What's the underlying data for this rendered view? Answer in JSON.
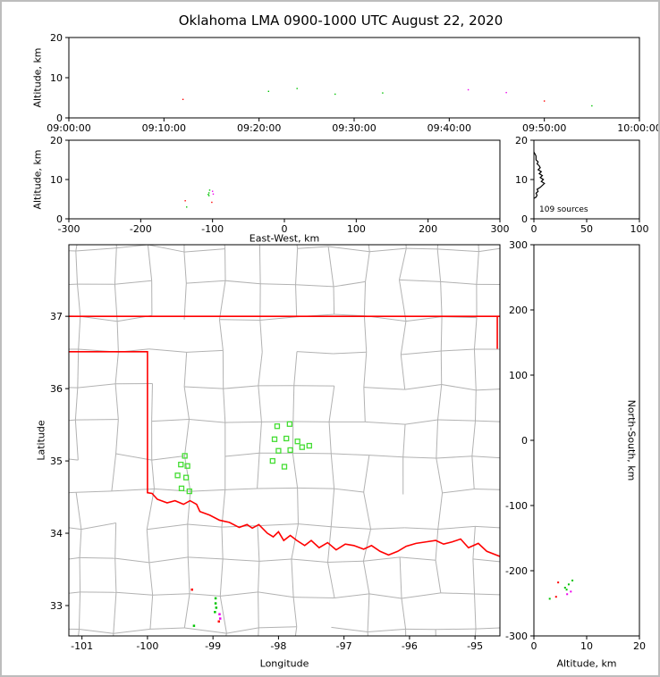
{
  "title": "Oklahoma LMA 0900-1000 UTC August 22, 2020",
  "colors": {
    "county": "#b2b2b2",
    "state_border": "#ff0000",
    "station": "#44dd33",
    "axis": "#000000",
    "green_source": "#00c400",
    "red_source": "#ff0000",
    "magenta_source": "#ee00ee"
  },
  "chart_data": [
    {
      "id": "time_height",
      "type": "scatter",
      "ylabel": "Altitude, km",
      "ylim": [
        0,
        20
      ],
      "yticks": [
        0,
        10,
        20
      ],
      "xlim": [
        0,
        60
      ],
      "xticks": [
        {
          "pos": 0,
          "label": "09:00:00"
        },
        {
          "pos": 10,
          "label": "09:10:00"
        },
        {
          "pos": 20,
          "label": "09:20:00"
        },
        {
          "pos": 30,
          "label": "09:30:00"
        },
        {
          "pos": 40,
          "label": "09:40:00"
        },
        {
          "pos": 50,
          "label": "09:50:00"
        },
        {
          "pos": 60,
          "label": "10:00:00"
        }
      ],
      "points": [
        {
          "x": 12,
          "y": 4.6,
          "c": "#ff0000"
        },
        {
          "x": 21,
          "y": 6.6,
          "c": "#00c400"
        },
        {
          "x": 24,
          "y": 7.3,
          "c": "#00c400"
        },
        {
          "x": 28,
          "y": 5.9,
          "c": "#00c400"
        },
        {
          "x": 33,
          "y": 6.2,
          "c": "#00c400"
        },
        {
          "x": 42,
          "y": 7.0,
          "c": "#ee00ee"
        },
        {
          "x": 46,
          "y": 6.3,
          "c": "#ee00ee"
        },
        {
          "x": 50,
          "y": 4.2,
          "c": "#ff0000"
        },
        {
          "x": 55,
          "y": 3.0,
          "c": "#00c400"
        }
      ]
    },
    {
      "id": "ew_height",
      "type": "scatter",
      "xlabel": "East-West, km",
      "ylabel": "Altitude, km",
      "xlim": [
        -300,
        300
      ],
      "xticks": [
        -300,
        -200,
        -100,
        0,
        100,
        200,
        300
      ],
      "ylim": [
        0,
        20
      ],
      "yticks": [
        0,
        10,
        20
      ],
      "points": [
        {
          "x": -138,
          "y": 4.6,
          "c": "#ff0000"
        },
        {
          "x": -105,
          "y": 6.6,
          "c": "#00c400"
        },
        {
          "x": -104,
          "y": 7.3,
          "c": "#00c400"
        },
        {
          "x": -105,
          "y": 5.9,
          "c": "#00c400"
        },
        {
          "x": -106,
          "y": 6.2,
          "c": "#00c400"
        },
        {
          "x": -100,
          "y": 7.0,
          "c": "#ee00ee"
        },
        {
          "x": -99,
          "y": 6.3,
          "c": "#ee00ee"
        },
        {
          "x": -101,
          "y": 4.2,
          "c": "#ff0000"
        },
        {
          "x": -136,
          "y": 3.0,
          "c": "#00c400"
        }
      ]
    },
    {
      "id": "source_histogram",
      "type": "line",
      "annotation": "109 sources",
      "xlim": [
        0,
        100
      ],
      "xticks": [
        0,
        50,
        100
      ],
      "ylim": [
        0,
        20
      ],
      "yticks": [
        0,
        10,
        20
      ],
      "profile": [
        [
          0,
          5.2
        ],
        [
          2,
          5.5
        ],
        [
          3,
          6.0
        ],
        [
          2,
          6.5
        ],
        [
          4,
          7.0
        ],
        [
          3,
          7.5
        ],
        [
          6,
          8.0
        ],
        [
          8,
          8.5
        ],
        [
          10,
          9.0
        ],
        [
          7,
          9.5
        ],
        [
          9,
          10.0
        ],
        [
          6,
          10.5
        ],
        [
          8,
          11.0
        ],
        [
          5,
          11.5
        ],
        [
          7,
          12.0
        ],
        [
          4,
          12.5
        ],
        [
          6,
          13.0
        ],
        [
          5,
          13.5
        ],
        [
          3,
          14.0
        ],
        [
          4,
          14.5
        ],
        [
          2,
          15.0
        ],
        [
          2,
          15.5
        ],
        [
          2,
          16.0
        ],
        [
          1,
          16.5
        ],
        [
          0,
          17.0
        ]
      ]
    },
    {
      "id": "map",
      "type": "scatter",
      "xlabel": "Longitude",
      "ylabel": "Latitude",
      "xlim": [
        -101.2,
        -94.62
      ],
      "xticks": [
        -101,
        -100,
        -99,
        -98,
        -97,
        -96,
        -95
      ],
      "ylim": [
        32.58,
        37.99
      ],
      "yticks": [
        33,
        34,
        35,
        36,
        37
      ],
      "stations": [
        [
          -98.02,
          35.48
        ],
        [
          -97.83,
          35.51
        ],
        [
          -98.06,
          35.3
        ],
        [
          -97.88,
          35.31
        ],
        [
          -97.71,
          35.27
        ],
        [
          -98.0,
          35.14
        ],
        [
          -97.82,
          35.15
        ],
        [
          -97.64,
          35.19
        ],
        [
          -98.09,
          35.0
        ],
        [
          -97.53,
          35.21
        ],
        [
          -97.91,
          34.92
        ],
        [
          -99.43,
          35.07
        ],
        [
          -99.49,
          34.95
        ],
        [
          -99.39,
          34.93
        ],
        [
          -99.54,
          34.8
        ],
        [
          -99.41,
          34.77
        ],
        [
          -99.48,
          34.62
        ],
        [
          -99.36,
          34.58
        ]
      ],
      "points": [
        {
          "x": -99.32,
          "y": 33.22,
          "c": "#ff0000"
        },
        {
          "x": -98.96,
          "y": 33.1,
          "c": "#00c400"
        },
        {
          "x": -98.96,
          "y": 33.03,
          "c": "#00c400"
        },
        {
          "x": -98.95,
          "y": 32.97,
          "c": "#00c400"
        },
        {
          "x": -98.97,
          "y": 32.91,
          "c": "#00c400"
        },
        {
          "x": -98.9,
          "y": 32.88,
          "c": "#ee00ee"
        },
        {
          "x": -98.89,
          "y": 32.82,
          "c": "#ee00ee"
        },
        {
          "x": -98.91,
          "y": 32.78,
          "c": "#ff0000"
        },
        {
          "x": -99.29,
          "y": 32.72,
          "c": "#00c400"
        }
      ],
      "borders": [
        [
          [
            -101.2,
            37.0
          ],
          [
            -94.62,
            37.0
          ]
        ],
        [
          [
            -94.66,
            37.0
          ],
          [
            -94.66,
            36.55
          ]
        ],
        [
          [
            -101.2,
            36.51
          ],
          [
            -100.0,
            36.51
          ],
          [
            -100.0,
            34.56
          ],
          [
            -99.93,
            34.55
          ],
          [
            -99.85,
            34.47
          ],
          [
            -99.7,
            34.42
          ],
          [
            -99.58,
            34.45
          ],
          [
            -99.45,
            34.4
          ],
          [
            -99.35,
            34.45
          ],
          [
            -99.25,
            34.4
          ],
          [
            -99.2,
            34.3
          ],
          [
            -99.05,
            34.25
          ],
          [
            -98.9,
            34.18
          ],
          [
            -98.75,
            34.15
          ],
          [
            -98.6,
            34.08
          ],
          [
            -98.48,
            34.12
          ],
          [
            -98.4,
            34.07
          ],
          [
            -98.3,
            34.12
          ],
          [
            -98.17,
            34.0
          ],
          [
            -98.08,
            33.95
          ],
          [
            -98.0,
            34.02
          ],
          [
            -97.92,
            33.9
          ],
          [
            -97.82,
            33.97
          ],
          [
            -97.72,
            33.9
          ],
          [
            -97.6,
            33.83
          ],
          [
            -97.5,
            33.9
          ],
          [
            -97.38,
            33.8
          ],
          [
            -97.25,
            33.87
          ],
          [
            -97.12,
            33.77
          ],
          [
            -96.98,
            33.85
          ],
          [
            -96.85,
            33.83
          ],
          [
            -96.7,
            33.78
          ],
          [
            -96.58,
            33.83
          ],
          [
            -96.45,
            33.75
          ],
          [
            -96.32,
            33.7
          ],
          [
            -96.18,
            33.75
          ],
          [
            -96.05,
            33.82
          ],
          [
            -95.9,
            33.86
          ],
          [
            -95.75,
            33.88
          ],
          [
            -95.6,
            33.9
          ],
          [
            -95.48,
            33.85
          ],
          [
            -95.35,
            33.88
          ],
          [
            -95.22,
            33.92
          ],
          [
            -95.1,
            33.8
          ],
          [
            -94.95,
            33.86
          ],
          [
            -94.82,
            33.75
          ],
          [
            -94.62,
            33.68
          ]
        ]
      ]
    },
    {
      "id": "ns_height",
      "type": "scatter",
      "xlabel": "Altitude, km",
      "ylabel": "North-South, km",
      "xlim": [
        0,
        20
      ],
      "xticks": [
        0,
        10,
        20
      ],
      "ylim": [
        -300,
        300
      ],
      "yticks": [
        -300,
        -200,
        -100,
        0,
        100,
        200,
        300
      ],
      "points": [
        {
          "x": 4.6,
          "y": -218,
          "c": "#ff0000"
        },
        {
          "x": 6.6,
          "y": -221,
          "c": "#00c400"
        },
        {
          "x": 7.3,
          "y": -215,
          "c": "#00c400"
        },
        {
          "x": 5.9,
          "y": -226,
          "c": "#00c400"
        },
        {
          "x": 6.2,
          "y": -229,
          "c": "#00c400"
        },
        {
          "x": 7.0,
          "y": -232,
          "c": "#ee00ee"
        },
        {
          "x": 6.3,
          "y": -236,
          "c": "#ee00ee"
        },
        {
          "x": 4.2,
          "y": -240,
          "c": "#ff0000"
        },
        {
          "x": 3.0,
          "y": -243,
          "c": "#00c400"
        }
      ]
    }
  ]
}
